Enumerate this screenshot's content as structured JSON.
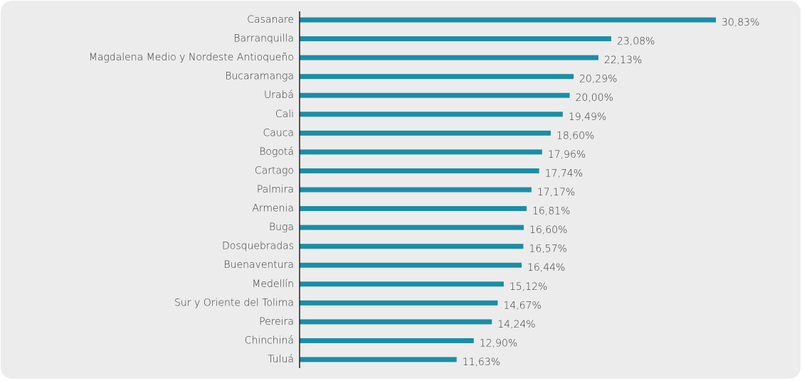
{
  "chart_data": {
    "type": "bar",
    "orientation": "horizontal",
    "color": "#1b8ea7",
    "categories": [
      "Casanare",
      "Barranquilla",
      "Magdalena Medio y Nordeste Antioqueño",
      "Bucaramanga",
      "Urabá",
      "Cali",
      "Cauca",
      "Bogotá",
      "Cartago",
      "Palmira",
      "Armenia",
      "Buga",
      "Dosquebradas",
      "Buenaventura",
      "Medellín",
      "Sur y Oriente del Tolima",
      "Pereira",
      "Chinchiná",
      "Tuluá"
    ],
    "values": [
      30.83,
      23.08,
      22.13,
      20.29,
      20.0,
      19.49,
      18.6,
      17.96,
      17.74,
      17.17,
      16.81,
      16.6,
      16.57,
      16.44,
      15.12,
      14.67,
      14.24,
      12.9,
      11.63
    ],
    "value_labels": [
      "30,83%",
      "23,08%",
      "22,13%",
      "20,29%",
      "20,00%",
      "19,49%",
      "18,60%",
      "17,96%",
      "17,74%",
      "17,17%",
      "16,81%",
      "16,60%",
      "16,57%",
      "16,44%",
      "15,12%",
      "14,67%",
      "14,24%",
      "12,90%",
      "11,63%"
    ]
  }
}
